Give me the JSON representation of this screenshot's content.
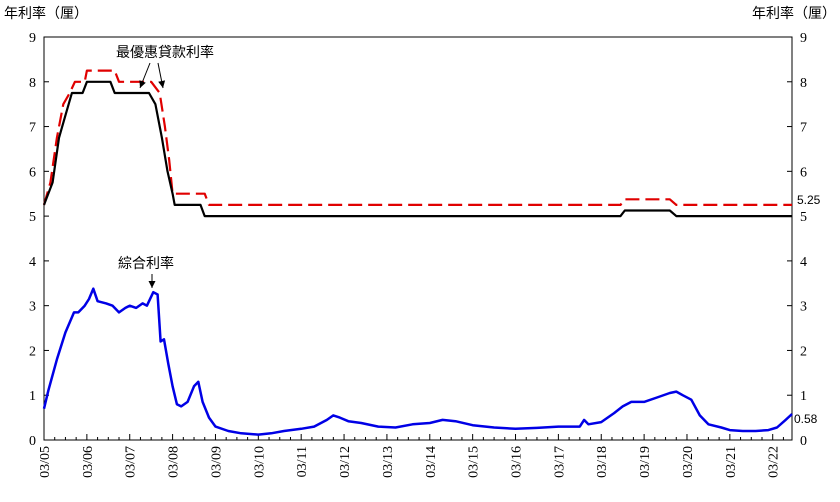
{
  "chart_data": {
    "type": "line",
    "ylabel_left": "年利率（厘）",
    "ylabel_right": "年利率（厘）",
    "ylim": [
      0,
      9
    ],
    "yticks": [
      0,
      1,
      2,
      3,
      4,
      5,
      6,
      7,
      8,
      9
    ],
    "xlim": [
      2005.0,
      2022.45
    ],
    "xticks": [
      {
        "label": "03/05",
        "x": 2005
      },
      {
        "label": "03/06",
        "x": 2006
      },
      {
        "label": "03/07",
        "x": 2007
      },
      {
        "label": "03/08",
        "x": 2008
      },
      {
        "label": "03/09",
        "x": 2009
      },
      {
        "label": "03/10",
        "x": 2010
      },
      {
        "label": "03/11",
        "x": 2011
      },
      {
        "label": "03/12",
        "x": 2012
      },
      {
        "label": "03/13",
        "x": 2013
      },
      {
        "label": "03/14",
        "x": 2014
      },
      {
        "label": "03/15",
        "x": 2015
      },
      {
        "label": "03/16",
        "x": 2016
      },
      {
        "label": "03/17",
        "x": 2017
      },
      {
        "label": "03/18",
        "x": 2018
      },
      {
        "label": "03/19",
        "x": 2019
      },
      {
        "label": "03/20",
        "x": 2020
      },
      {
        "label": "03/21",
        "x": 2021
      },
      {
        "label": "03/22",
        "x": 2022
      }
    ],
    "annotations": {
      "prime": "最優惠貸款利率",
      "composite": "綜合利率",
      "end_prime": "5.25",
      "end_composite": "0.58"
    },
    "series": [
      {
        "color": "#e00000",
        "dash": true,
        "points": [
          [
            2005.0,
            5.25
          ],
          [
            2005.15,
            5.75
          ],
          [
            2005.3,
            6.75
          ],
          [
            2005.45,
            7.5
          ],
          [
            2005.6,
            7.75
          ],
          [
            2005.72,
            8.0
          ],
          [
            2005.95,
            8.0
          ],
          [
            2006.0,
            8.25
          ],
          [
            2006.65,
            8.25
          ],
          [
            2006.75,
            8.0
          ],
          [
            2007.5,
            8.0
          ],
          [
            2007.7,
            7.75
          ],
          [
            2007.82,
            7.0
          ],
          [
            2007.92,
            6.25
          ],
          [
            2008.0,
            5.5
          ],
          [
            2008.75,
            5.5
          ],
          [
            2008.85,
            5.25
          ],
          [
            2018.45,
            5.25
          ],
          [
            2018.55,
            5.375
          ],
          [
            2019.6,
            5.375
          ],
          [
            2019.75,
            5.25
          ],
          [
            2022.45,
            5.25
          ]
        ]
      },
      {
        "color": "#000000",
        "dash": false,
        "points": [
          [
            2005.0,
            5.25
          ],
          [
            2005.2,
            5.75
          ],
          [
            2005.35,
            6.75
          ],
          [
            2005.5,
            7.25
          ],
          [
            2005.65,
            7.75
          ],
          [
            2005.9,
            7.75
          ],
          [
            2006.0,
            8.0
          ],
          [
            2006.55,
            8.0
          ],
          [
            2006.65,
            7.75
          ],
          [
            2007.45,
            7.75
          ],
          [
            2007.6,
            7.5
          ],
          [
            2007.75,
            6.75
          ],
          [
            2007.88,
            6.0
          ],
          [
            2008.0,
            5.5
          ],
          [
            2008.05,
            5.25
          ],
          [
            2008.65,
            5.25
          ],
          [
            2008.75,
            5.0
          ],
          [
            2018.45,
            5.0
          ],
          [
            2018.55,
            5.125
          ],
          [
            2019.6,
            5.125
          ],
          [
            2019.75,
            5.0
          ],
          [
            2022.45,
            5.0
          ]
        ]
      },
      {
        "color": "#0000e6",
        "dash": false,
        "points": [
          [
            2005.0,
            0.7
          ],
          [
            2005.1,
            1.1
          ],
          [
            2005.3,
            1.8
          ],
          [
            2005.5,
            2.4
          ],
          [
            2005.7,
            2.85
          ],
          [
            2005.8,
            2.85
          ],
          [
            2005.95,
            3.0
          ],
          [
            2006.05,
            3.15
          ],
          [
            2006.15,
            3.38
          ],
          [
            2006.25,
            3.1
          ],
          [
            2006.45,
            3.05
          ],
          [
            2006.6,
            3.0
          ],
          [
            2006.75,
            2.85
          ],
          [
            2006.9,
            2.95
          ],
          [
            2007.0,
            3.0
          ],
          [
            2007.15,
            2.95
          ],
          [
            2007.3,
            3.05
          ],
          [
            2007.4,
            3.0
          ],
          [
            2007.55,
            3.3
          ],
          [
            2007.65,
            3.25
          ],
          [
            2007.72,
            2.2
          ],
          [
            2007.8,
            2.25
          ],
          [
            2007.9,
            1.7
          ],
          [
            2008.0,
            1.2
          ],
          [
            2008.1,
            0.8
          ],
          [
            2008.2,
            0.75
          ],
          [
            2008.35,
            0.85
          ],
          [
            2008.5,
            1.2
          ],
          [
            2008.6,
            1.3
          ],
          [
            2008.7,
            0.85
          ],
          [
            2008.85,
            0.5
          ],
          [
            2009.0,
            0.3
          ],
          [
            2009.3,
            0.2
          ],
          [
            2009.6,
            0.15
          ],
          [
            2010.0,
            0.12
          ],
          [
            2010.3,
            0.15
          ],
          [
            2010.6,
            0.2
          ],
          [
            2011.0,
            0.25
          ],
          [
            2011.3,
            0.3
          ],
          [
            2011.6,
            0.45
          ],
          [
            2011.75,
            0.55
          ],
          [
            2011.9,
            0.5
          ],
          [
            2012.1,
            0.42
          ],
          [
            2012.4,
            0.38
          ],
          [
            2012.8,
            0.3
          ],
          [
            2013.2,
            0.28
          ],
          [
            2013.6,
            0.35
          ],
          [
            2014.0,
            0.38
          ],
          [
            2014.3,
            0.45
          ],
          [
            2014.6,
            0.42
          ],
          [
            2015.0,
            0.33
          ],
          [
            2015.5,
            0.28
          ],
          [
            2016.0,
            0.25
          ],
          [
            2016.5,
            0.27
          ],
          [
            2017.0,
            0.3
          ],
          [
            2017.5,
            0.3
          ],
          [
            2017.6,
            0.45
          ],
          [
            2017.7,
            0.35
          ],
          [
            2018.0,
            0.4
          ],
          [
            2018.3,
            0.6
          ],
          [
            2018.5,
            0.75
          ],
          [
            2018.7,
            0.85
          ],
          [
            2019.0,
            0.85
          ],
          [
            2019.3,
            0.95
          ],
          [
            2019.6,
            1.05
          ],
          [
            2019.75,
            1.08
          ],
          [
            2019.9,
            1.0
          ],
          [
            2020.1,
            0.9
          ],
          [
            2020.3,
            0.55
          ],
          [
            2020.5,
            0.35
          ],
          [
            2020.8,
            0.28
          ],
          [
            2021.0,
            0.22
          ],
          [
            2021.3,
            0.2
          ],
          [
            2021.6,
            0.2
          ],
          [
            2021.9,
            0.22
          ],
          [
            2022.1,
            0.28
          ],
          [
            2022.3,
            0.45
          ],
          [
            2022.45,
            0.58
          ]
        ]
      }
    ]
  }
}
